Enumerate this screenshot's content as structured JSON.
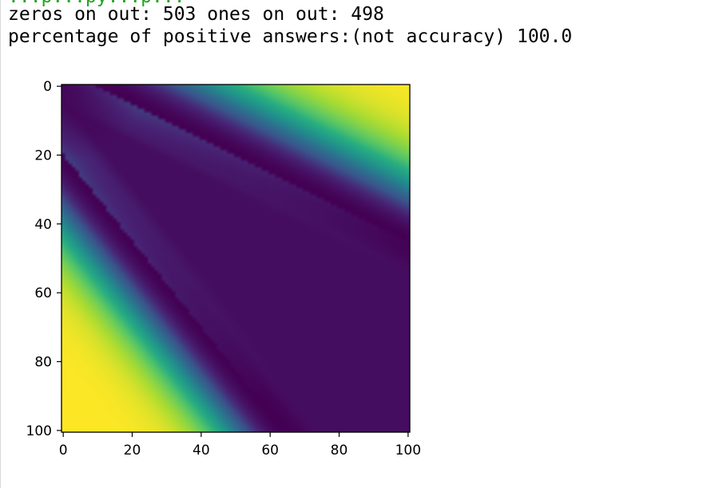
{
  "output": {
    "partial_line": "...p...py...p...",
    "line1": "zeros on out: 503 ones on out: 498",
    "line2": "percentage of positive answers:(not accuracy) 100.0"
  },
  "chart_data": {
    "type": "heatmap",
    "title": "",
    "xlabel": "",
    "ylabel": "",
    "colormap": "viridis",
    "shape": [
      101,
      101
    ],
    "xlim": [
      0,
      100
    ],
    "ylim": [
      100,
      0
    ],
    "x_ticks": [
      0,
      20,
      40,
      60,
      80,
      100
    ],
    "y_ticks": [
      0,
      20,
      40,
      60,
      80,
      100
    ],
    "grid": false,
    "description_of_bands": {
      "band1_line": "j = 0.8 * (i - 20)",
      "band2_line": "i = 0.5 * (j - 10)"
    }
  }
}
